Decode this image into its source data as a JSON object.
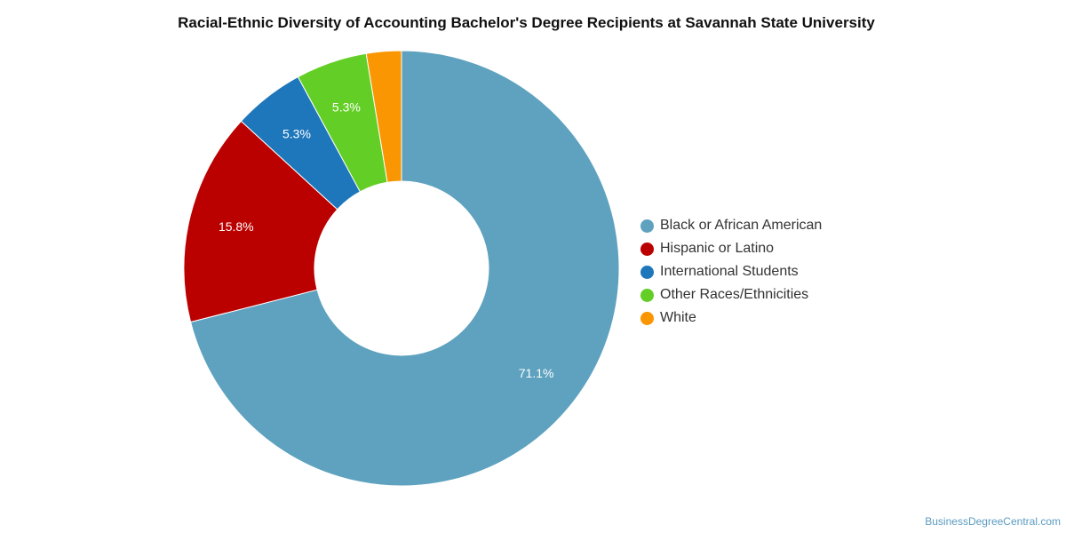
{
  "chart_data": {
    "type": "pie",
    "title": "Racial-Ethnic Diversity of Accounting Bachelor's Degree Recipients at Savannah State University",
    "donut": true,
    "legend_position": "right",
    "series": [
      {
        "name": "Black or African American",
        "value": 71.1,
        "label": "71.1%",
        "color": "#5ea2bf"
      },
      {
        "name": "Hispanic or Latino",
        "value": 15.8,
        "label": "15.8%",
        "color": "#bb0000"
      },
      {
        "name": "International Students",
        "value": 5.3,
        "label": "5.3%",
        "color": "#1f77bb"
      },
      {
        "name": "Other Races/Ethnicities",
        "value": 5.3,
        "label": "5.3%",
        "color": "#63cf26"
      },
      {
        "name": "White",
        "value": 2.6,
        "label": "",
        "color": "#f99602"
      }
    ]
  },
  "watermark": "BusinessDegreeCentral.com"
}
